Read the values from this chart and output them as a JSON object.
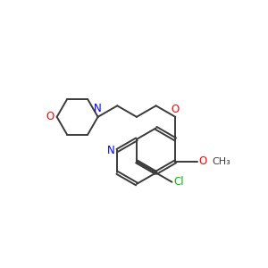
{
  "bg_color": "#ffffff",
  "bond_color": "#3a3a3a",
  "N_color": "#0000ff",
  "O_color": "#ff0000",
  "Cl_color": "#00bb00",
  "lw": 1.4,
  "dbo": 0.055,
  "figsize": [
    3.0,
    3.0
  ],
  "dpi": 100,
  "xlim": [
    0,
    10
  ],
  "ylim": [
    0,
    10
  ]
}
